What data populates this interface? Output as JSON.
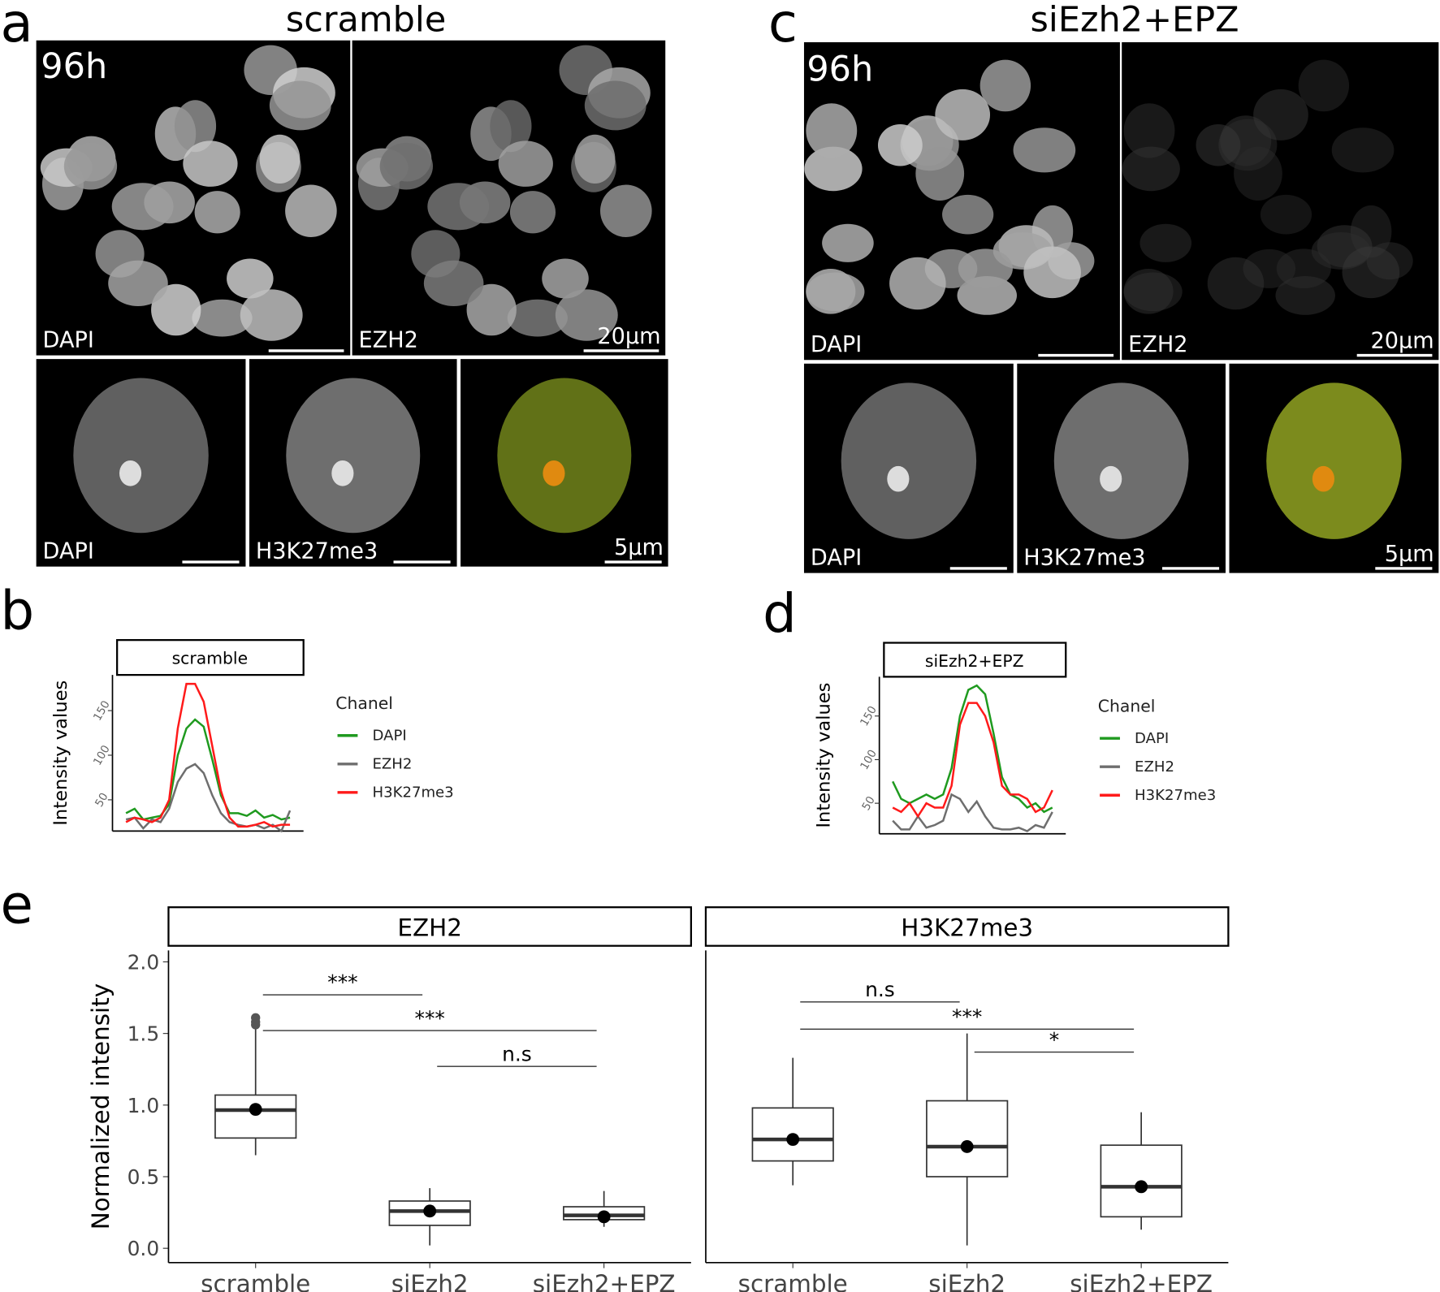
{
  "panel_letters": [
    "a",
    "b",
    "c",
    "d",
    "e"
  ],
  "images": [
    {
      "title": "scramble",
      "time": "96h",
      "top": [
        "DAPI",
        "EZH2"
      ],
      "top_scale": "20µm",
      "bottom": [
        "DAPI",
        "H3K27me3"
      ],
      "bottom_scale": "5µm"
    },
    {
      "title": "siEzh2+EPZ",
      "time": "96h",
      "top": [
        "DAPI",
        "EZH2"
      ],
      "top_scale": "20µm",
      "bottom": [
        "DAPI",
        "H3K27me3"
      ],
      "bottom_scale": "5µm"
    }
  ],
  "chart_data": [
    {
      "type": "line",
      "strip_title": "scramble",
      "y_label": "Intensity values",
      "legend_title": "Chanel",
      "x": [
        1,
        2,
        3,
        4,
        5,
        6,
        7,
        8,
        9,
        10,
        11,
        12,
        13,
        14,
        15,
        16,
        17,
        18,
        19,
        20
      ],
      "xlim": [
        0.5,
        20.5
      ],
      "ylim": [
        15,
        190
      ],
      "yticks": [
        50,
        100,
        150
      ],
      "series": [
        {
          "name": "DAPI",
          "color": "#1f9a1f",
          "values": [
            35,
            40,
            28,
            30,
            32,
            45,
            100,
            130,
            140,
            132,
            95,
            55,
            35,
            35,
            32,
            38,
            30,
            33,
            28,
            30
          ]
        },
        {
          "name": "EZH2",
          "color": "#6e6e6e",
          "values": [
            28,
            30,
            18,
            28,
            25,
            40,
            70,
            85,
            90,
            80,
            55,
            35,
            25,
            22,
            20,
            22,
            18,
            22,
            15,
            38
          ]
        },
        {
          "name": "H3K27me3",
          "color": "#ff1a1a",
          "values": [
            25,
            30,
            28,
            25,
            30,
            50,
            130,
            180,
            180,
            160,
            110,
            60,
            30,
            20,
            20,
            22,
            25,
            20,
            22,
            22
          ]
        }
      ]
    },
    {
      "type": "line",
      "strip_title": "siEzh2+EPZ",
      "y_label": "Intensity values",
      "legend_title": "Chanel",
      "x": [
        1,
        2,
        3,
        4,
        5,
        6,
        7,
        8,
        9,
        10,
        11,
        12,
        13,
        14,
        15,
        16,
        17,
        18,
        19,
        20
      ],
      "xlim": [
        0.5,
        20.5
      ],
      "ylim": [
        15,
        195
      ],
      "yticks": [
        50,
        100,
        150
      ],
      "series": [
        {
          "name": "DAPI",
          "color": "#1f9a1f",
          "values": [
            75,
            55,
            50,
            55,
            60,
            55,
            60,
            90,
            150,
            180,
            185,
            175,
            130,
            80,
            60,
            55,
            45,
            50,
            40,
            45
          ]
        },
        {
          "name": "EZH2",
          "color": "#6e6e6e",
          "values": [
            30,
            20,
            20,
            35,
            22,
            25,
            30,
            60,
            55,
            40,
            52,
            35,
            22,
            20,
            20,
            22,
            18,
            25,
            22,
            40
          ]
        },
        {
          "name": "H3K27me3",
          "color": "#ff1a1a",
          "values": [
            45,
            40,
            50,
            35,
            50,
            45,
            45,
            70,
            140,
            165,
            165,
            150,
            120,
            70,
            60,
            60,
            55,
            40,
            45,
            65
          ]
        }
      ]
    },
    {
      "type": "box",
      "y_label": "Normalized intensity",
      "ylim": [
        -0.1,
        2.08
      ],
      "yticks": [
        {
          "value": 0,
          "label": "0.0"
        },
        0.5,
        {
          "value": 1,
          "label": "1.0"
        },
        1.5,
        {
          "value": 2,
          "label": "2.0"
        }
      ],
      "categories": [
        "scramble",
        "siEzh2",
        "siEzh2+EPZ"
      ],
      "facets": [
        {
          "name": "EZH2",
          "boxes": [
            {
              "whisker_low": 0.65,
              "q1": 0.77,
              "median": 0.965,
              "q3": 1.07,
              "whisker_high": 1.55,
              "mean": 0.97,
              "outliers": [
                1.56,
                1.58,
                1.61
              ]
            },
            {
              "whisker_low": 0.02,
              "q1": 0.16,
              "median": 0.26,
              "q3": 0.33,
              "whisker_high": 0.42,
              "mean": 0.26,
              "outliers": []
            },
            {
              "whisker_low": 0.15,
              "q1": 0.2,
              "median": 0.23,
              "q3": 0.29,
              "whisker_high": 0.4,
              "mean": 0.22,
              "outliers": []
            }
          ],
          "comparisons": [
            {
              "pair": [
                0,
                1
              ],
              "label": "***",
              "y": 1.77
            },
            {
              "pair": [
                0,
                2
              ],
              "label": "***",
              "y": 1.52
            },
            {
              "pair": [
                1,
                2
              ],
              "label": "n.s",
              "y": 1.27
            }
          ]
        },
        {
          "name": "H3K27me3",
          "boxes": [
            {
              "whisker_low": 0.44,
              "q1": 0.61,
              "median": 0.76,
              "q3": 0.98,
              "whisker_high": 1.33,
              "mean": 0.76,
              "outliers": []
            },
            {
              "whisker_low": 0.02,
              "q1": 0.5,
              "median": 0.71,
              "q3": 1.03,
              "whisker_high": 1.5,
              "mean": 0.71,
              "outliers": []
            },
            {
              "whisker_low": 0.13,
              "q1": 0.22,
              "median": 0.43,
              "q3": 0.72,
              "whisker_high": 0.95,
              "mean": 0.43,
              "outliers": []
            }
          ],
          "comparisons": [
            {
              "pair": [
                0,
                1
              ],
              "label": "n.s",
              "y": 1.72
            },
            {
              "pair": [
                0,
                2
              ],
              "label": "***",
              "y": 1.53
            },
            {
              "pair": [
                1,
                2
              ],
              "label": "*",
              "y": 1.37
            }
          ]
        }
      ]
    }
  ]
}
